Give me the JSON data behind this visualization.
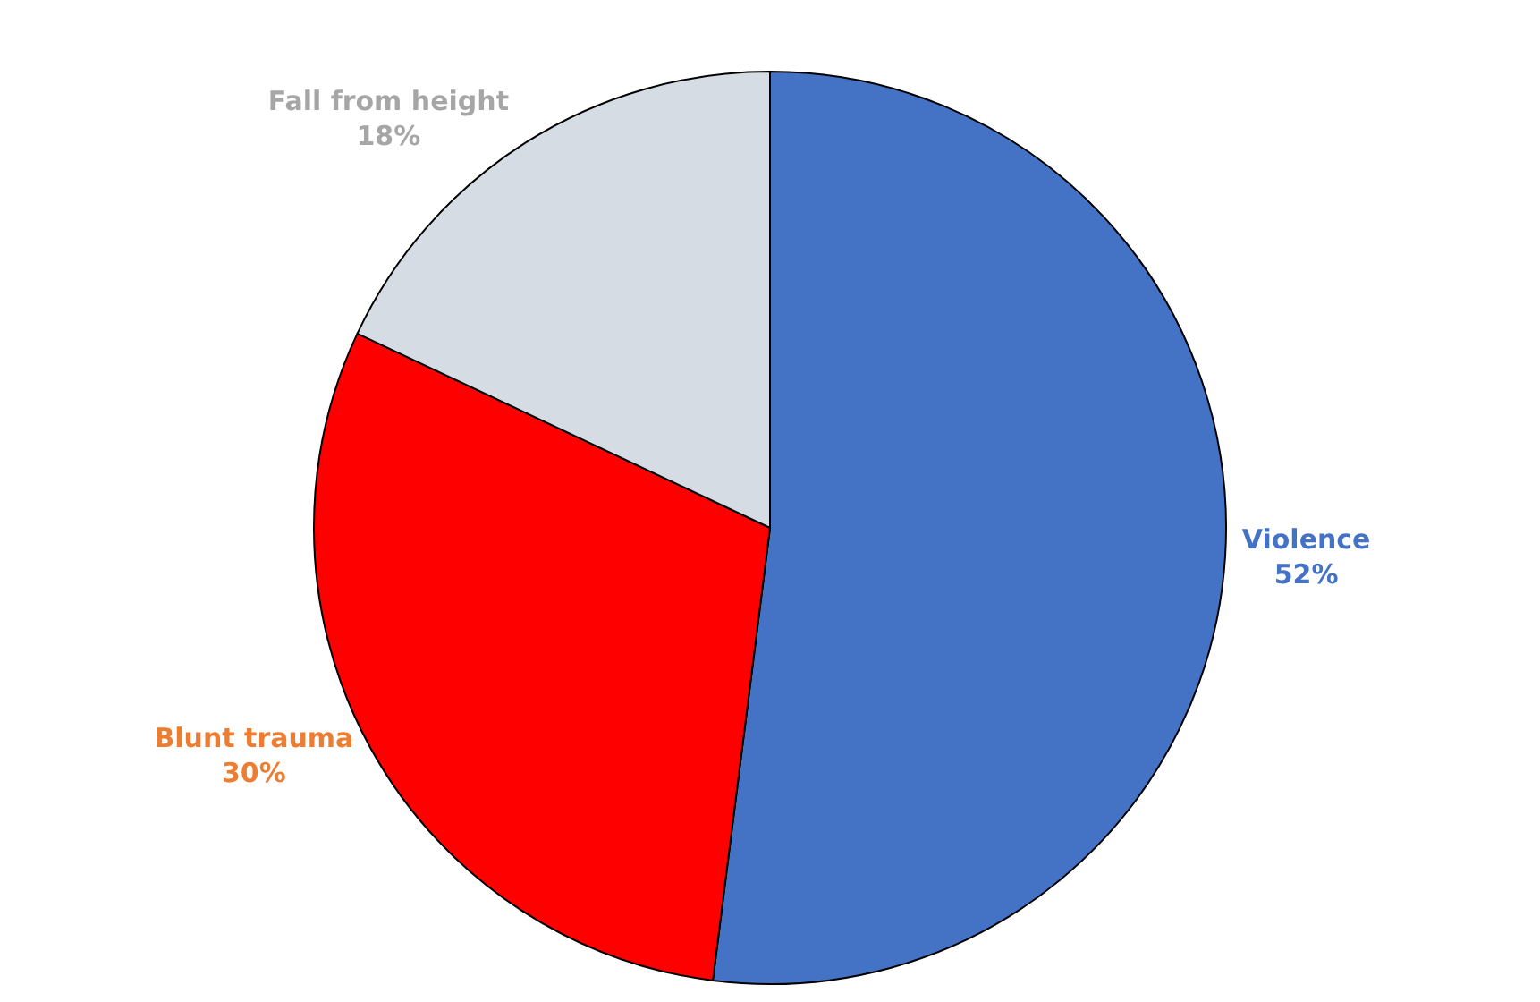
{
  "chart_data": {
    "type": "pie",
    "categories": [
      "Violence",
      "Blunt trauma",
      "Fall from height"
    ],
    "values": [
      52,
      30,
      18
    ],
    "value_labels": [
      "52%",
      "30%",
      "18%"
    ],
    "colors": [
      "#4472c4",
      "#ff0000",
      "#d6dce4"
    ]
  }
}
